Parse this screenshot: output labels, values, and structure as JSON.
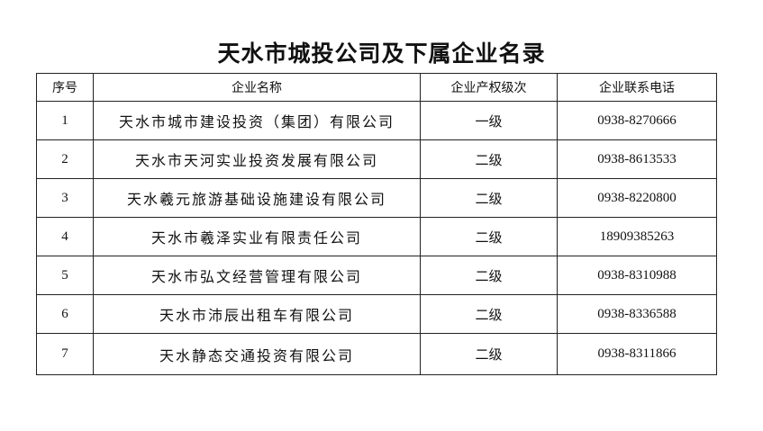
{
  "title": "天水市城投公司及下属企业名录",
  "table": {
    "headers": [
      "序号",
      "企业名称",
      "企业产权级次",
      "企业联系电话"
    ],
    "rows": [
      {
        "no": "1",
        "name": "天水市城市建设投资（集团）有限公司",
        "level": "一级",
        "phone": "0938-8270666"
      },
      {
        "no": "2",
        "name": "天水市天河实业投资发展有限公司",
        "level": "二级",
        "phone": "0938-8613533"
      },
      {
        "no": "3",
        "name": "天水羲元旅游基础设施建设有限公司",
        "level": "二级",
        "phone": "0938-8220800"
      },
      {
        "no": "4",
        "name": "天水市羲泽实业有限责任公司",
        "level": "二级",
        "phone": "18909385263"
      },
      {
        "no": "5",
        "name": "天水市弘文经营管理有限公司",
        "level": "二级",
        "phone": "0938-8310988"
      },
      {
        "no": "6",
        "name": "天水市沛辰出租车有限公司",
        "level": "二级",
        "phone": "0938-8336588"
      },
      {
        "no": "7",
        "name": "天水静态交通投资有限公司",
        "level": "二级",
        "phone": "0938-8311866"
      }
    ]
  }
}
